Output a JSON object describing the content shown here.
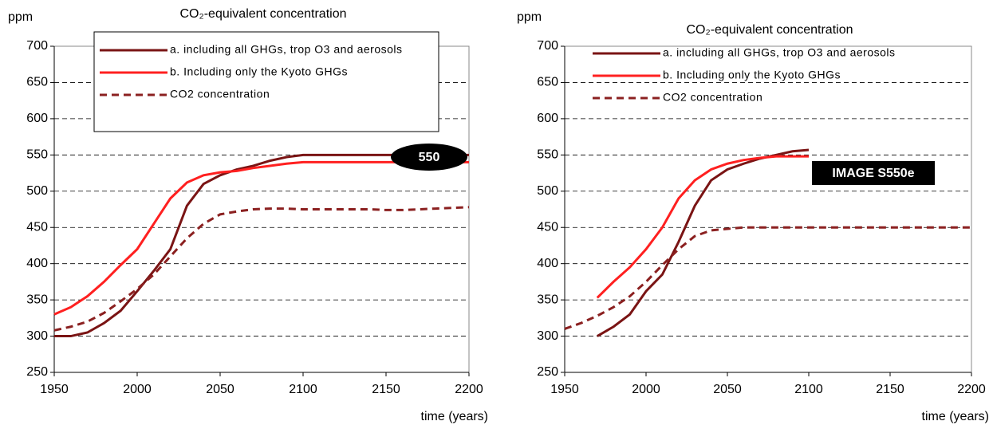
{
  "chart_data": [
    {
      "type": "line",
      "title": "CO₂-equivalent concentration",
      "y_label": "ppm",
      "x_label": "time (years)",
      "x": [
        1950,
        1960,
        1970,
        1980,
        1990,
        2000,
        2010,
        2020,
        2030,
        2040,
        2050,
        2060,
        2070,
        2080,
        2090,
        2100,
        2110,
        2120,
        2130,
        2140,
        2150,
        2160,
        2170,
        2180,
        2190,
        2200
      ],
      "series": [
        {
          "name": "a. including all GHGs, trop O3 and aerosols",
          "color": "#7a1414",
          "dashed": false,
          "values": [
            300,
            300,
            305,
            318,
            335,
            362,
            390,
            420,
            480,
            510,
            522,
            530,
            535,
            542,
            547,
            550,
            550,
            550,
            550,
            550,
            550,
            550,
            550,
            550,
            550,
            550
          ]
        },
        {
          "name": "b. Including only the Kyoto GHGs",
          "color": "#ff2020",
          "dashed": false,
          "values": [
            330,
            340,
            355,
            375,
            398,
            420,
            455,
            490,
            512,
            522,
            526,
            528,
            532,
            535,
            538,
            540,
            540,
            540,
            540,
            540,
            540,
            540,
            540,
            540,
            540,
            540
          ]
        },
        {
          "name": "CO2 concentration",
          "color": "#8b2020",
          "dashed": true,
          "values": [
            308,
            313,
            320,
            332,
            348,
            365,
            385,
            410,
            435,
            455,
            468,
            472,
            475,
            476,
            476,
            475,
            475,
            475,
            475,
            475,
            474,
            474,
            475,
            476,
            477,
            478
          ]
        }
      ],
      "xlim": [
        1950,
        2200
      ],
      "xticks": [
        1950,
        2000,
        2050,
        2100,
        2150,
        2200
      ],
      "ylim": [
        250,
        700
      ],
      "yticks": [
        250,
        300,
        350,
        400,
        450,
        500,
        550,
        600,
        650,
        700
      ],
      "grid": true,
      "legend_box": true,
      "annotation": "550"
    },
    {
      "type": "line",
      "title": "CO₂-equivalent concentration",
      "y_label": "ppm",
      "x_label": "time (years)",
      "x": [
        1950,
        1960,
        1970,
        1980,
        1990,
        2000,
        2010,
        2020,
        2030,
        2040,
        2050,
        2060,
        2070,
        2080,
        2090,
        2100,
        2110,
        2120,
        2130,
        2140,
        2150,
        2160,
        2170,
        2180,
        2190,
        2200
      ],
      "series": [
        {
          "name": "a. including all GHGs, trop O3 and aerosols",
          "color": "#7a1414",
          "dashed": false,
          "values": [
            null,
            null,
            300,
            313,
            330,
            362,
            385,
            430,
            480,
            515,
            530,
            538,
            545,
            550,
            555,
            557,
            null,
            null,
            null,
            null,
            null,
            null,
            null,
            null,
            null,
            null
          ]
        },
        {
          "name": "b. Including only the Kyoto GHGs",
          "color": "#ff2020",
          "dashed": false,
          "values": [
            null,
            null,
            353,
            375,
            395,
            420,
            450,
            490,
            515,
            530,
            538,
            543,
            546,
            548,
            548,
            548,
            null,
            null,
            null,
            null,
            null,
            null,
            null,
            null,
            null,
            null
          ]
        },
        {
          "name": "CO2 concentration",
          "color": "#8b2020",
          "dashed": true,
          "values": [
            310,
            318,
            328,
            340,
            355,
            375,
            398,
            420,
            438,
            446,
            448,
            450,
            450,
            450,
            450,
            450,
            450,
            450,
            450,
            450,
            450,
            450,
            450,
            450,
            450,
            450
          ]
        }
      ],
      "xlim": [
        1950,
        2200
      ],
      "xticks": [
        1950,
        2000,
        2050,
        2100,
        2150,
        2200
      ],
      "ylim": [
        250,
        700
      ],
      "yticks": [
        250,
        300,
        350,
        400,
        450,
        500,
        550,
        600,
        650,
        700
      ],
      "grid": true,
      "legend_box": false,
      "annotation": "IMAGE S550e"
    }
  ]
}
